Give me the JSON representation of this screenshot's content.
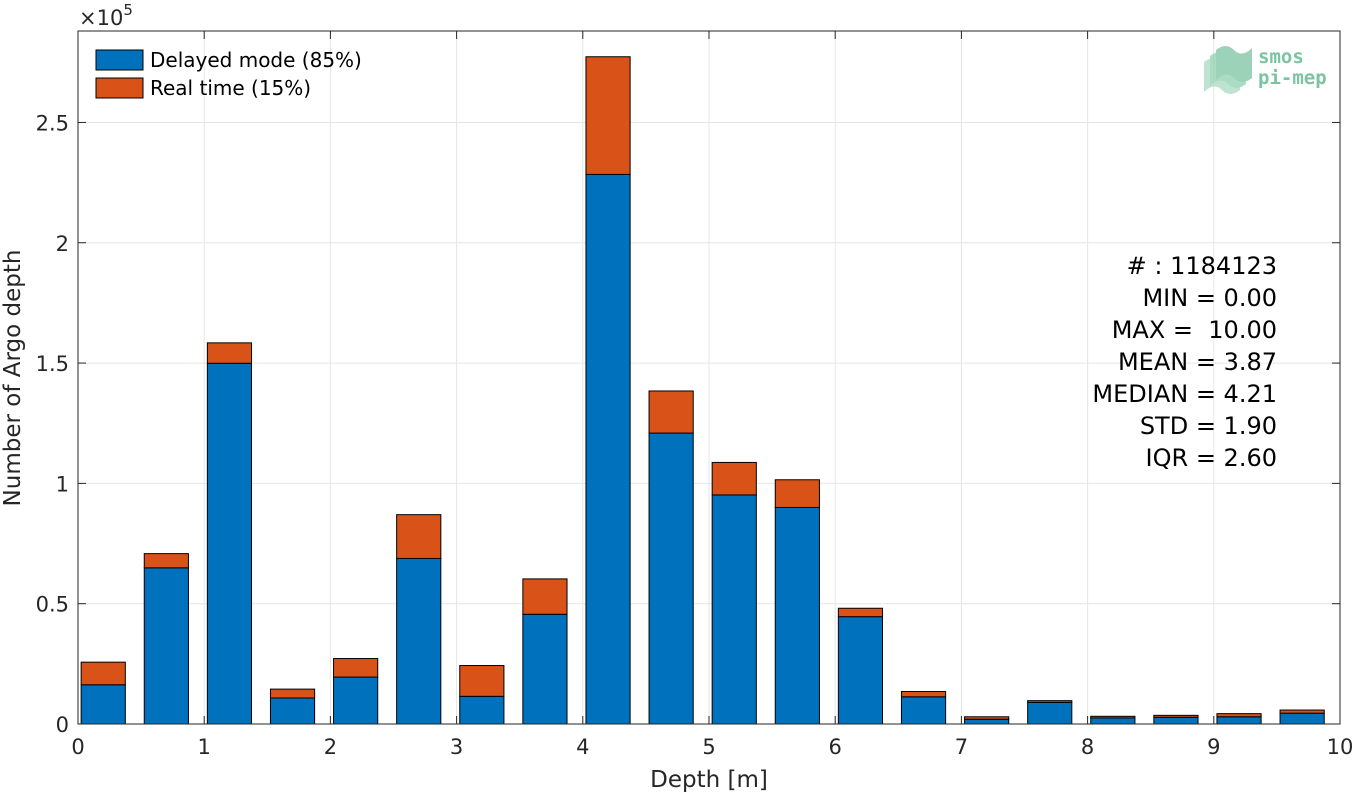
{
  "chart_data": {
    "type": "bar",
    "stacked": true,
    "xlabel": "Depth [m]",
    "ylabel": "Number of Argo depth",
    "y_exponent_label": "×10",
    "y_exponent_power": "5",
    "xlim": [
      0,
      10
    ],
    "ylim": [
      0,
      2.88
    ],
    "x_ticks": [
      "0",
      "1",
      "2",
      "3",
      "4",
      "5",
      "6",
      "7",
      "8",
      "9",
      "10"
    ],
    "y_ticks": [
      "0",
      "0.5",
      "1",
      "1.5",
      "2",
      "2.5"
    ],
    "grid": true,
    "legend_position": "top-left",
    "x": [
      0.2,
      0.7,
      1.2,
      1.7,
      2.2,
      2.7,
      3.2,
      3.7,
      4.2,
      4.7,
      5.2,
      5.7,
      6.2,
      6.7,
      7.2,
      7.7,
      8.2,
      8.7,
      9.2,
      9.7
    ],
    "bar_width": 0.35,
    "series": [
      {
        "name": "Delayed mode (85%)",
        "color": "#0072bd",
        "values": [
          0.163,
          0.649,
          1.499,
          0.108,
          0.195,
          0.688,
          0.115,
          0.456,
          2.284,
          1.209,
          0.952,
          0.9,
          0.446,
          0.113,
          0.02,
          0.09,
          0.025,
          0.028,
          0.03,
          0.045
        ]
      },
      {
        "name": "Real time (15%)",
        "color": "#d95319",
        "values": [
          0.094,
          0.059,
          0.085,
          0.037,
          0.077,
          0.182,
          0.128,
          0.147,
          0.489,
          0.175,
          0.135,
          0.115,
          0.035,
          0.022,
          0.01,
          0.007,
          0.007,
          0.008,
          0.013,
          0.013
        ]
      }
    ],
    "stats": [
      "# : 1184123",
      "MIN = 0.00",
      "MAX =  10.00",
      "MEAN = 3.87",
      "MEDIAN = 4.21",
      "STD = 1.90",
      "IQR = 2.60"
    ]
  },
  "logo": {
    "line1": "smos",
    "line2": "pi-mep"
  },
  "colors": {
    "grid": "#e6e6e6",
    "axis": "#262626",
    "bar_edge": "#000000"
  }
}
